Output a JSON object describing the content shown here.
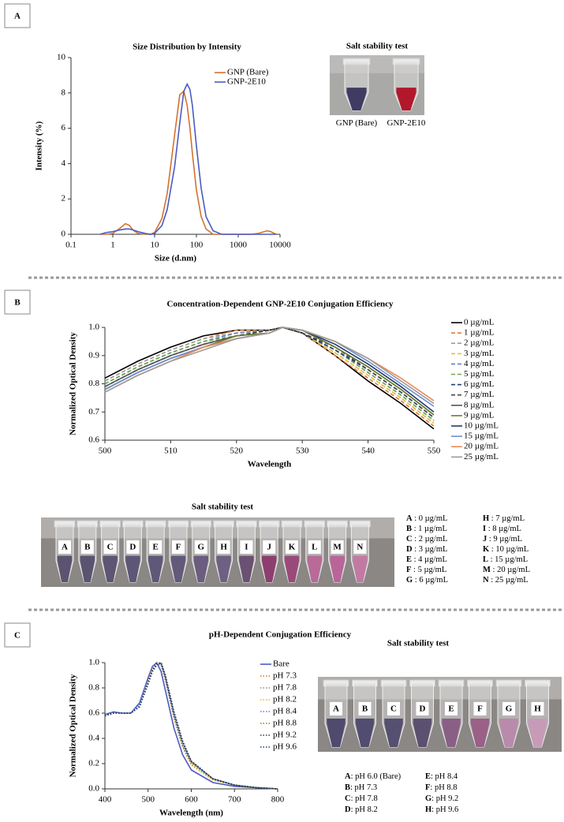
{
  "panel_labels": [
    "A",
    "B",
    "C"
  ],
  "chart_data": [
    {
      "type": "line",
      "title": "Size Distribution by Intensity",
      "xlabel": "Size (d.nm)",
      "ylabel": "Intensity (%)",
      "xscale": "log",
      "xlim": [
        0.1,
        10000
      ],
      "xticks": [
        0.1,
        1,
        10,
        100,
        1000,
        10000
      ],
      "ylim": [
        0,
        10
      ],
      "yticks": [
        0,
        2,
        4,
        6,
        8,
        10
      ],
      "legend": "upper right",
      "x": [
        0.5,
        0.7,
        1,
        1.5,
        2,
        2.5,
        3,
        4,
        6,
        8,
        10,
        15,
        20,
        30,
        40,
        50,
        60,
        70,
        80,
        100,
        130,
        170,
        250,
        400,
        1000,
        2000,
        3000,
        5000,
        6000,
        8000
      ],
      "series": [
        {
          "name": "GNP (Bare)",
          "color": "#d2722d",
          "style": "solid",
          "values": [
            0,
            0,
            0.05,
            0.35,
            0.6,
            0.5,
            0.25,
            0.05,
            0,
            0,
            0.1,
            0.9,
            2.3,
            5.6,
            7.9,
            8.1,
            7.3,
            6.0,
            4.6,
            2.5,
            1.0,
            0.3,
            0,
            0,
            0,
            0,
            0.05,
            0.2,
            0.15,
            0
          ]
        },
        {
          "name": "GNP-2E10",
          "color": "#4a5bc4",
          "style": "solid",
          "values": [
            0,
            0.1,
            0.15,
            0.25,
            0.3,
            0.3,
            0.25,
            0.15,
            0.05,
            0,
            0.05,
            0.5,
            1.4,
            3.8,
            6.3,
            8.1,
            8.5,
            8.2,
            7.3,
            5.0,
            2.6,
            1.0,
            0.2,
            0,
            0,
            0,
            0,
            0,
            0,
            0
          ]
        }
      ]
    },
    {
      "type": "line",
      "title": "Concentration-Dependent GNP-2E10 Conjugation Efficiency",
      "xlabel": "Wavelength",
      "ylabel": "Normalized Optical Density",
      "xscale": "linear",
      "xlim": [
        500,
        550
      ],
      "xticks": [
        500,
        510,
        520,
        530,
        540,
        550
      ],
      "ylim": [
        0.6,
        1
      ],
      "yticks": [
        0.6,
        0.7,
        0.8,
        0.9,
        {
          "value": 1,
          "label": "1.0"
        }
      ],
      "legend": "right",
      "x": [
        500,
        505,
        510,
        515,
        520,
        525,
        527,
        530,
        535,
        540,
        545,
        550
      ],
      "series": [
        {
          "name": "0 µg/mL",
          "color": "#000000",
          "style": "solid",
          "values": [
            0.82,
            0.88,
            0.93,
            0.97,
            0.99,
            0.99,
            1.0,
            0.98,
            0.9,
            0.81,
            0.73,
            0.64
          ]
        },
        {
          "name": "1 µg/mL",
          "color": "#e07b39",
          "style": "dashed",
          "values": [
            0.81,
            0.87,
            0.92,
            0.96,
            0.99,
            0.99,
            1.0,
            0.98,
            0.9,
            0.82,
            0.74,
            0.65
          ]
        },
        {
          "name": "2 µg/mL",
          "color": "#9e9e9e",
          "style": "dashed",
          "values": [
            0.81,
            0.87,
            0.92,
            0.96,
            0.98,
            0.99,
            1.0,
            0.98,
            0.91,
            0.83,
            0.75,
            0.66
          ]
        },
        {
          "name": "3 µg/mL",
          "color": "#e8c23a",
          "style": "dashed",
          "values": [
            0.8,
            0.86,
            0.91,
            0.95,
            0.98,
            0.99,
            1.0,
            0.98,
            0.91,
            0.83,
            0.75,
            0.66
          ]
        },
        {
          "name": "4 µg/mL",
          "color": "#5b7fcf",
          "style": "dashed",
          "values": [
            0.8,
            0.86,
            0.91,
            0.95,
            0.98,
            0.99,
            1.0,
            0.98,
            0.92,
            0.84,
            0.76,
            0.67
          ]
        },
        {
          "name": "5 µg/mL",
          "color": "#6aa84f",
          "style": "dashed",
          "values": [
            0.8,
            0.86,
            0.91,
            0.95,
            0.97,
            0.99,
            1.0,
            0.98,
            0.92,
            0.84,
            0.76,
            0.67
          ]
        },
        {
          "name": "6 µg/mL",
          "color": "#1f3b73",
          "style": "dashed",
          "values": [
            0.79,
            0.85,
            0.9,
            0.94,
            0.97,
            0.99,
            1.0,
            0.98,
            0.92,
            0.85,
            0.77,
            0.68
          ]
        },
        {
          "name": "7 µg/mL",
          "color": "#444444",
          "style": "dashed",
          "values": [
            0.79,
            0.85,
            0.9,
            0.94,
            0.97,
            0.99,
            1.0,
            0.98,
            0.93,
            0.85,
            0.77,
            0.68
          ]
        },
        {
          "name": "8 µg/mL",
          "color": "#555555",
          "style": "solid",
          "values": [
            0.79,
            0.85,
            0.9,
            0.94,
            0.97,
            0.98,
            1.0,
            0.99,
            0.93,
            0.86,
            0.78,
            0.69
          ]
        },
        {
          "name": "9 µg/mL",
          "color": "#6b7d2e",
          "style": "solid",
          "values": [
            0.78,
            0.84,
            0.89,
            0.93,
            0.97,
            0.98,
            1.0,
            0.99,
            0.93,
            0.86,
            0.78,
            0.69
          ]
        },
        {
          "name": "10 µg/mL",
          "color": "#223a6e",
          "style": "solid",
          "values": [
            0.78,
            0.84,
            0.89,
            0.93,
            0.96,
            0.98,
            1.0,
            0.99,
            0.94,
            0.87,
            0.79,
            0.7
          ]
        },
        {
          "name": "15 µg/mL",
          "color": "#6b8fd4",
          "style": "solid",
          "values": [
            0.78,
            0.84,
            0.89,
            0.93,
            0.96,
            0.98,
            1.0,
            0.99,
            0.95,
            0.88,
            0.8,
            0.72
          ]
        },
        {
          "name": "20 µg/mL",
          "color": "#ef8a5a",
          "style": "solid",
          "values": [
            0.77,
            0.83,
            0.88,
            0.93,
            0.96,
            0.98,
            1.0,
            0.99,
            0.95,
            0.89,
            0.82,
            0.74
          ]
        },
        {
          "name": "25 µg/mL",
          "color": "#a09a96",
          "style": "solid",
          "values": [
            0.77,
            0.83,
            0.88,
            0.92,
            0.96,
            0.98,
            1.0,
            0.99,
            0.95,
            0.89,
            0.81,
            0.73
          ]
        }
      ]
    },
    {
      "type": "line",
      "title": "pH-Dependent Conjugation Efficiency",
      "xlabel": "Wavelength (nm)",
      "ylabel": "Normalized Optical Density",
      "xscale": "linear",
      "xlim": [
        400,
        800
      ],
      "xticks": [
        400,
        500,
        600,
        700,
        800
      ],
      "ylim": [
        0,
        1
      ],
      "yticks": [
        {
          "value": 0,
          "label": "0.0"
        },
        0.2,
        0.4,
        0.6,
        0.8,
        {
          "value": 1,
          "label": "1.0"
        }
      ],
      "legend": "right",
      "x": [
        400,
        420,
        440,
        460,
        480,
        500,
        510,
        520,
        530,
        540,
        560,
        580,
        600,
        650,
        700,
        750,
        800
      ],
      "series": [
        {
          "name": "Bare",
          "color": "#4a5bc4",
          "style": "solid",
          "values": [
            0.59,
            0.61,
            0.6,
            0.6,
            0.68,
            0.88,
            0.97,
            1.0,
            0.93,
            0.78,
            0.48,
            0.27,
            0.15,
            0.05,
            0.02,
            0.01,
            0
          ]
        },
        {
          "name": "pH 7.3",
          "color": "#d2722d",
          "style": "dotted",
          "values": [
            0.58,
            0.6,
            0.6,
            0.6,
            0.66,
            0.86,
            0.96,
            0.99,
            0.98,
            0.86,
            0.56,
            0.33,
            0.19,
            0.07,
            0.03,
            0.01,
            0
          ]
        },
        {
          "name": "pH 7.8",
          "color": "#8c8c8c",
          "style": "dotted",
          "values": [
            0.58,
            0.6,
            0.6,
            0.6,
            0.66,
            0.85,
            0.95,
            0.99,
            0.99,
            0.87,
            0.57,
            0.34,
            0.2,
            0.07,
            0.03,
            0.01,
            0
          ]
        },
        {
          "name": "pH 8.2",
          "color": "#e8b52a",
          "style": "dotted",
          "values": [
            0.58,
            0.6,
            0.6,
            0.6,
            0.66,
            0.85,
            0.95,
            0.99,
            0.99,
            0.88,
            0.58,
            0.35,
            0.2,
            0.07,
            0.03,
            0.01,
            0
          ]
        },
        {
          "name": "pH 8.4",
          "color": "#5b7fcf",
          "style": "dotted",
          "values": [
            0.58,
            0.6,
            0.6,
            0.6,
            0.66,
            0.85,
            0.95,
            0.99,
            0.99,
            0.88,
            0.58,
            0.35,
            0.21,
            0.08,
            0.03,
            0.01,
            0
          ]
        },
        {
          "name": "pH 8.8",
          "color": "#7a8a2a",
          "style": "dotted",
          "values": [
            0.58,
            0.6,
            0.6,
            0.6,
            0.65,
            0.84,
            0.94,
            0.99,
            1.0,
            0.89,
            0.59,
            0.36,
            0.21,
            0.08,
            0.03,
            0.01,
            0
          ]
        },
        {
          "name": "pH 9.2",
          "color": "#333333",
          "style": "dotted",
          "values": [
            0.58,
            0.6,
            0.6,
            0.6,
            0.65,
            0.84,
            0.94,
            0.99,
            1.0,
            0.89,
            0.6,
            0.37,
            0.22,
            0.08,
            0.03,
            0.01,
            0
          ]
        },
        {
          "name": "pH 9.6",
          "color": "#1f3b73",
          "style": "dotted",
          "values": [
            0.58,
            0.6,
            0.6,
            0.6,
            0.65,
            0.83,
            0.93,
            0.98,
            1.0,
            0.9,
            0.61,
            0.38,
            0.22,
            0.08,
            0.03,
            0.01,
            0
          ]
        }
      ]
    }
  ],
  "photos": [
    {
      "title": "Salt stability test",
      "tubes": [
        {
          "label": "GNP (Bare)",
          "color": "#3f3b62"
        },
        {
          "label": "GNP-2E10",
          "color": "#b3172c"
        }
      ]
    },
    {
      "title": "Salt stability test",
      "tubes": [
        {
          "label": "A",
          "color": "#5a5470"
        },
        {
          "label": "B",
          "color": "#5a5470"
        },
        {
          "label": "C",
          "color": "#5c5573"
        },
        {
          "label": "D",
          "color": "#5e5677"
        },
        {
          "label": "E",
          "color": "#605878"
        },
        {
          "label": "F",
          "color": "#625a7a"
        },
        {
          "label": "G",
          "color": "#6a5d80"
        },
        {
          "label": "H",
          "color": "#6e6084"
        },
        {
          "label": "I",
          "color": "#6a5072"
        },
        {
          "label": "J",
          "color": "#8c3f6e"
        },
        {
          "label": "K",
          "color": "#9a4a7a"
        },
        {
          "label": "L",
          "color": "#b86a98"
        },
        {
          "label": "M",
          "color": "#b9659a"
        },
        {
          "label": "N",
          "color": "#c27aa3"
        }
      ],
      "key": [
        {
          "letter": "A",
          "text": " : 0 µg/mL"
        },
        {
          "letter": "B",
          "text": " : 1 µg/mL"
        },
        {
          "letter": "C",
          "text": " : 2 µg/mL"
        },
        {
          "letter": "D",
          "text": " : 3 µg/mL"
        },
        {
          "letter": "E",
          "text": " : 4 µg/mL"
        },
        {
          "letter": "F",
          "text": " : 5 µg/mL"
        },
        {
          "letter": "G",
          "text": " : 6 µg/mL"
        },
        {
          "letter": "H",
          "text": " : 7 µg/mL"
        },
        {
          "letter": "I",
          "text": " : 8 µg/mL"
        },
        {
          "letter": "J",
          "text": " : 9 µg/mL"
        },
        {
          "letter": "K",
          "text": " : 10 µg/mL"
        },
        {
          "letter": "L",
          "text": " : 15 µg/mL"
        },
        {
          "letter": "M",
          "text": " : 20 µg/mL"
        },
        {
          "letter": "N",
          "text": " : 25 µg/mL"
        }
      ]
    },
    {
      "title": "Salt stability test",
      "tubes": [
        {
          "label": "A",
          "color": "#4f4a6e"
        },
        {
          "label": "B",
          "color": "#524c70"
        },
        {
          "label": "C",
          "color": "#55506f"
        },
        {
          "label": "D",
          "color": "#5b5070"
        },
        {
          "label": "E",
          "color": "#8a5f85"
        },
        {
          "label": "F",
          "color": "#9a6088"
        },
        {
          "label": "G",
          "color": "#b98aab"
        },
        {
          "label": "H",
          "color": "#c79bb8"
        }
      ],
      "key": [
        {
          "letter": "A",
          "text": ": pH 6.0 (Bare)"
        },
        {
          "letter": "B",
          "text": ": pH 7.3"
        },
        {
          "letter": "C",
          "text": ": pH 7.8"
        },
        {
          "letter": "D",
          "text": ": pH 8.2"
        },
        {
          "letter": "E",
          "text": ": pH 8.4"
        },
        {
          "letter": "F",
          "text": ": pH 8.8"
        },
        {
          "letter": "G",
          "text": ": pH 9.2"
        },
        {
          "letter": "H",
          "text": ": pH 9.6"
        }
      ]
    }
  ]
}
